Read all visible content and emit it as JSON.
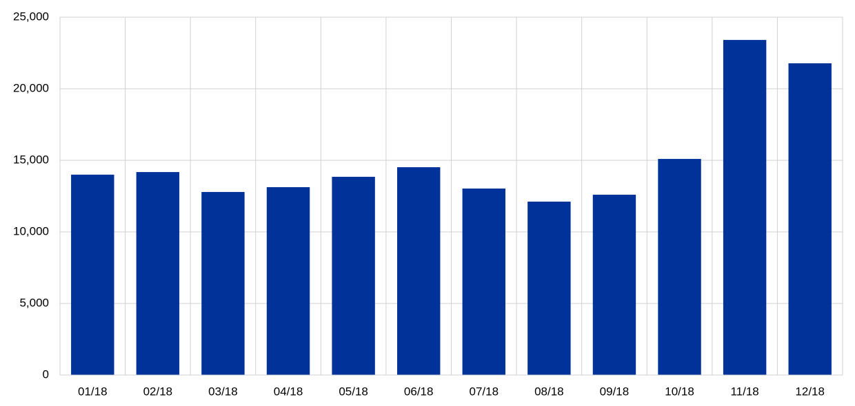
{
  "chart_data": {
    "type": "bar",
    "categories": [
      "01/18",
      "02/18",
      "03/18",
      "04/18",
      "05/18",
      "06/18",
      "07/18",
      "08/18",
      "09/18",
      "10/18",
      "11/18",
      "12/18"
    ],
    "values": [
      14000,
      14180,
      12790,
      13125,
      13850,
      14520,
      13030,
      12115,
      12600,
      15100,
      23410,
      21780
    ],
    "color": "#003299",
    "ylim": [
      0,
      25000
    ],
    "yticks": [
      0,
      {
        "value": 5000,
        "label": "5,000"
      },
      {
        "value": 10000,
        "label": "10,000"
      },
      {
        "value": 15000,
        "label": "15,000"
      },
      {
        "value": 20000,
        "label": "20,000"
      },
      {
        "value": 25000,
        "label": "25,000"
      }
    ],
    "grid": true
  }
}
